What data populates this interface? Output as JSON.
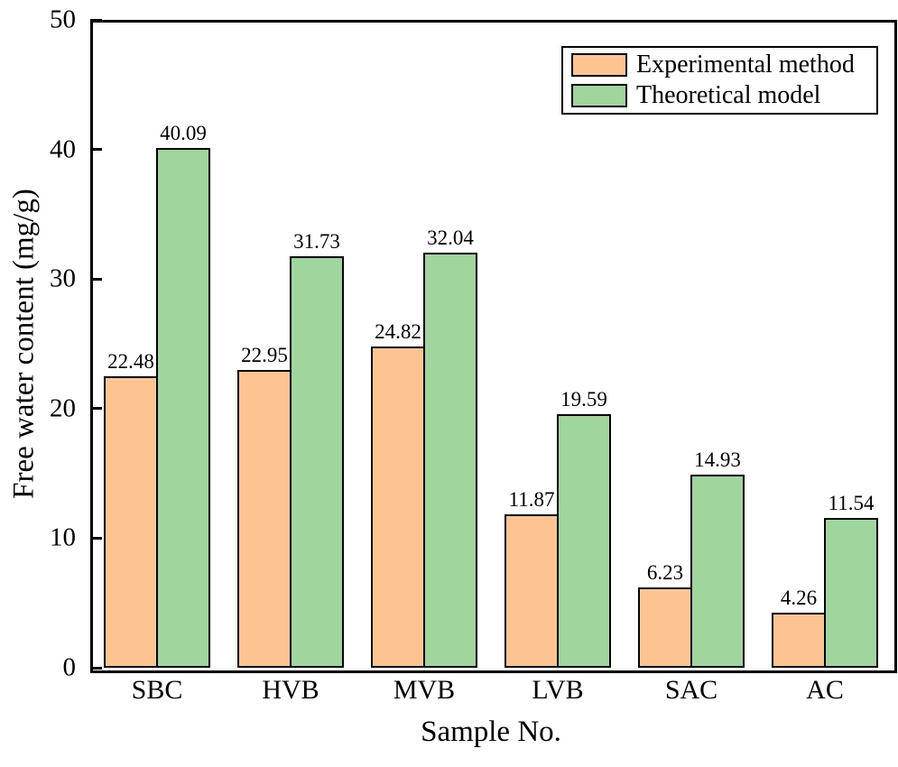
{
  "chart_data": {
    "type": "bar",
    "categories": [
      "SBC",
      "HVB",
      "MVB",
      "LVB",
      "SAC",
      "AC"
    ],
    "series": [
      {
        "name": "Experimental method",
        "color": "#fdc491",
        "values": [
          22.48,
          22.95,
          24.82,
          11.87,
          6.23,
          4.26
        ]
      },
      {
        "name": "Theoretical model",
        "color": "#a0d59d",
        "values": [
          40.09,
          31.73,
          32.04,
          19.59,
          14.93,
          11.54
        ]
      }
    ],
    "title": "",
    "xlabel": "Sample No.",
    "ylabel": "Free water content (mg/g)",
    "ylim": [
      0,
      50
    ],
    "yticks": [
      0,
      10,
      20,
      30,
      40,
      50
    ],
    "grid": false,
    "bar_value_labels": true,
    "legend_position": "top-right",
    "colors": {
      "axis": "#000000",
      "text": "#000000",
      "background": "#ffffff"
    }
  }
}
